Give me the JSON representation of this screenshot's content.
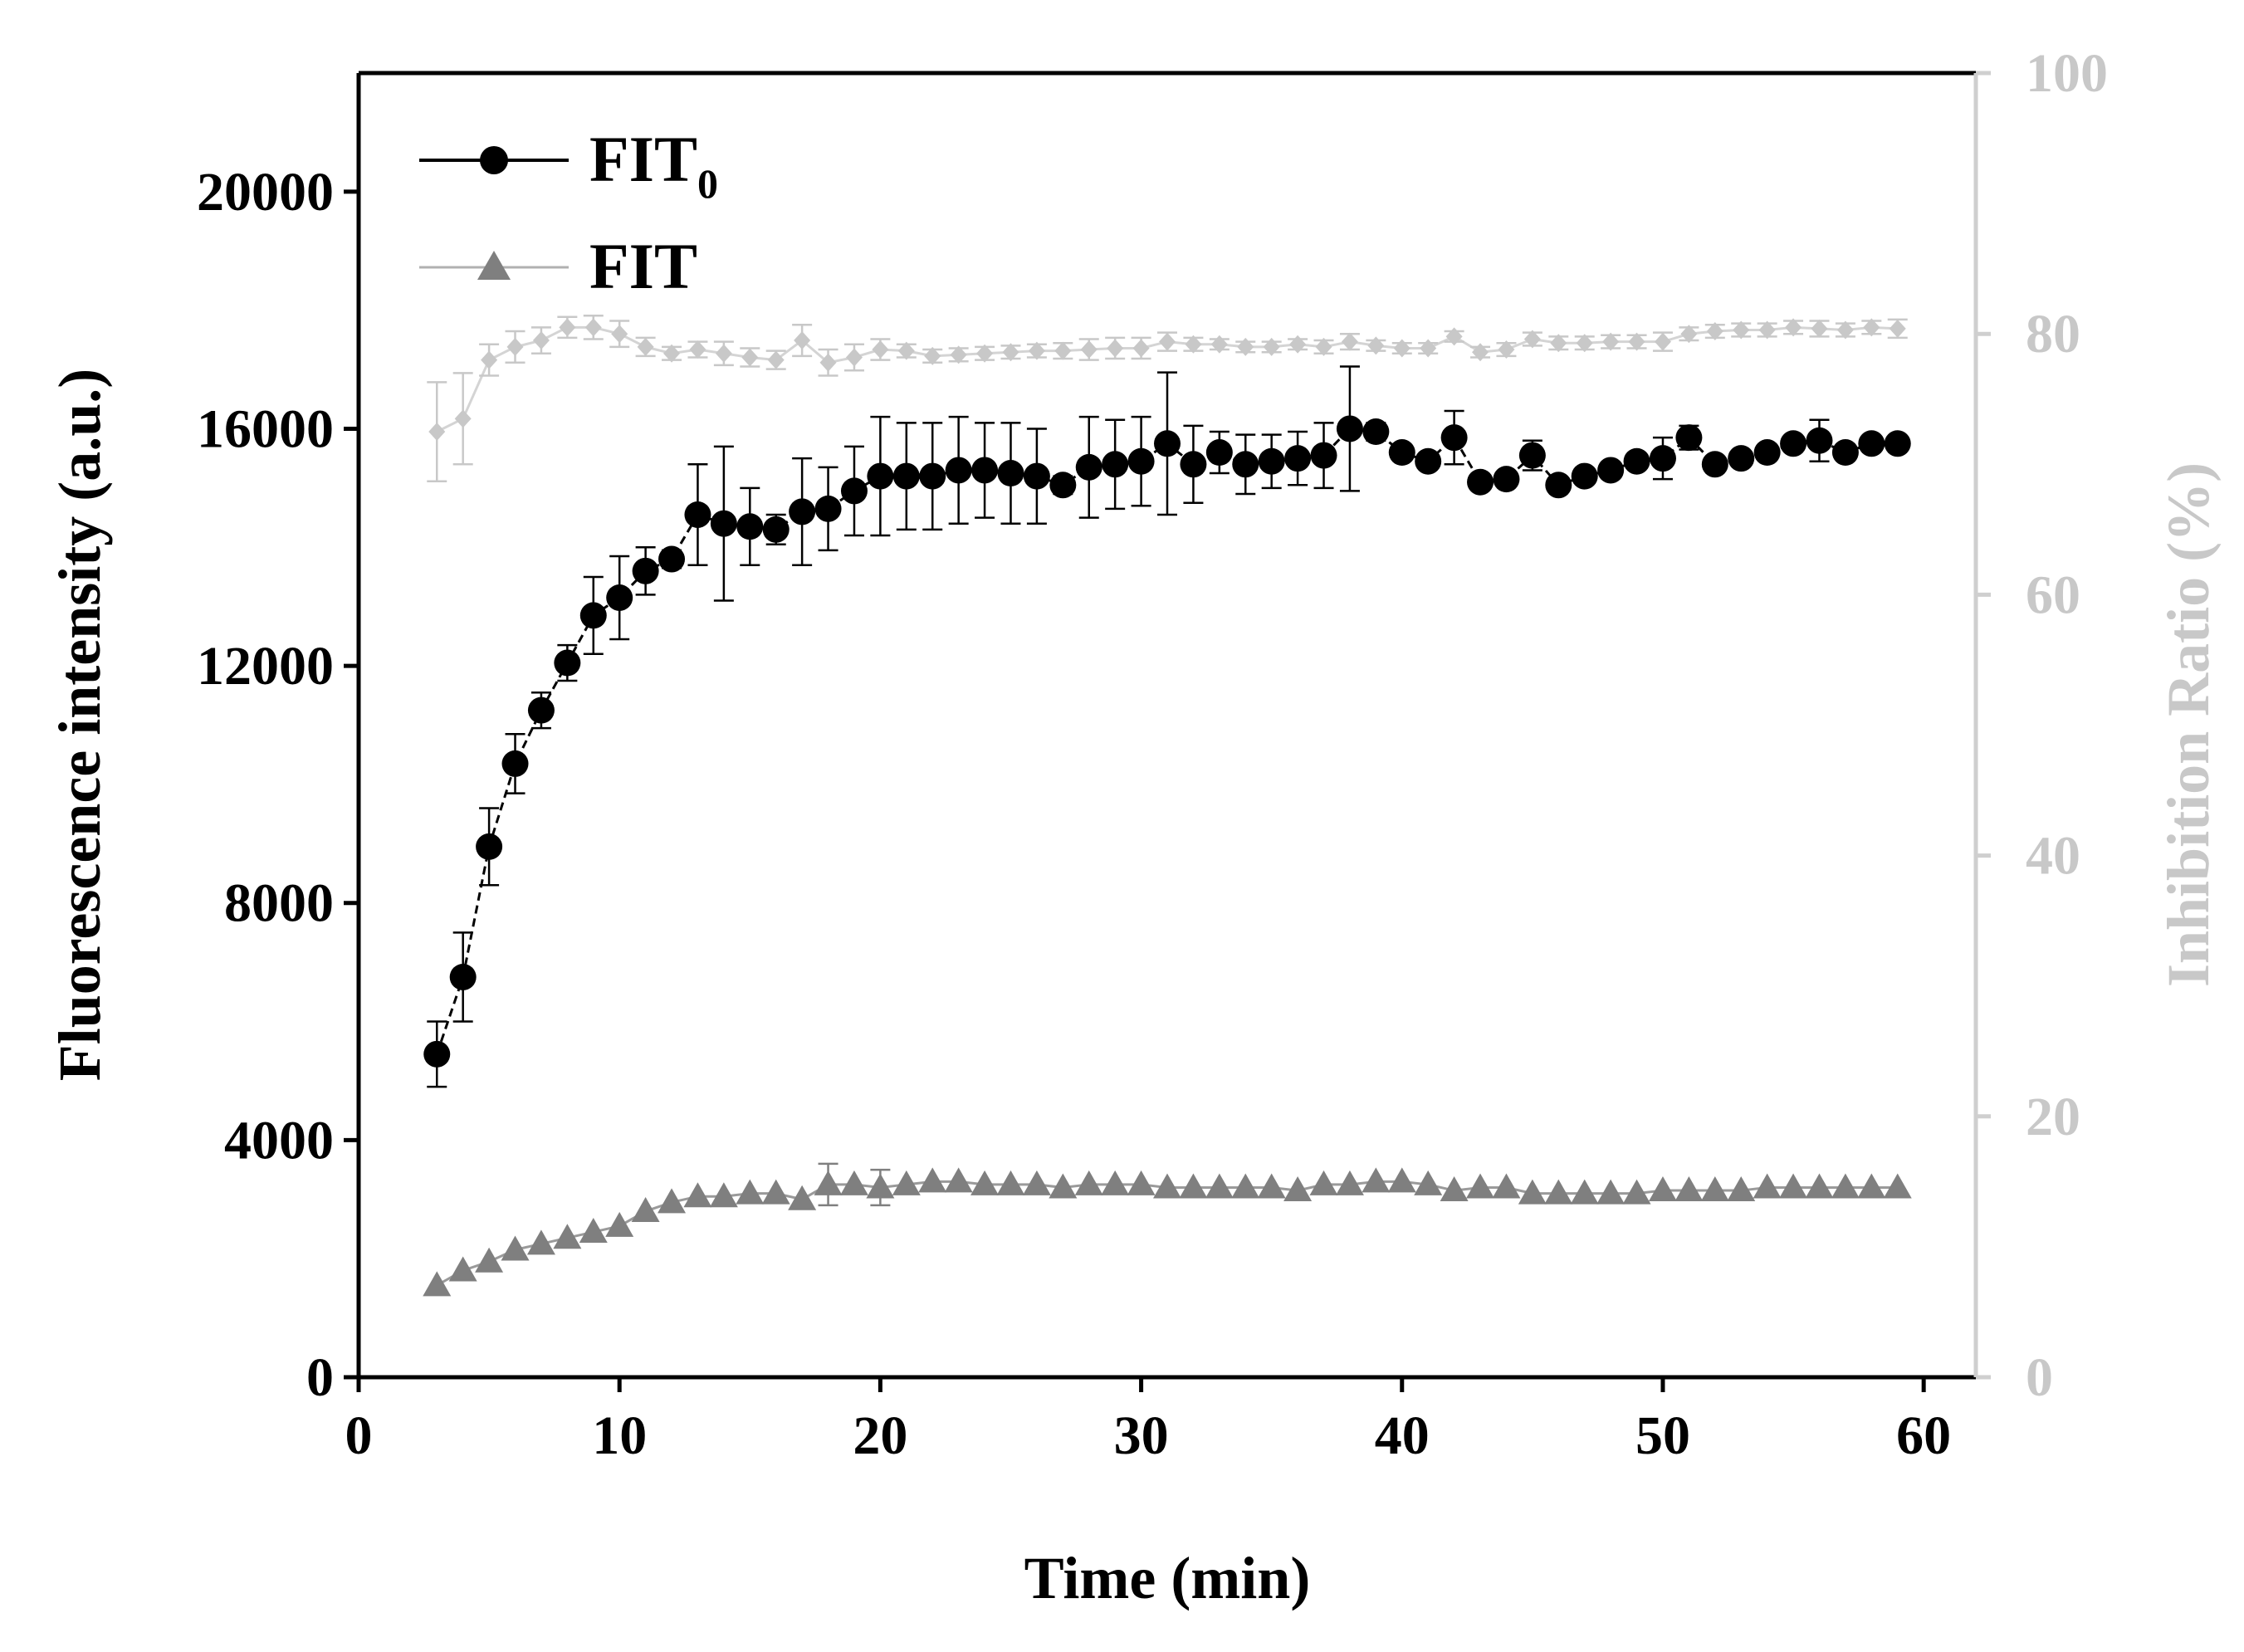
{
  "chart_data": {
    "type": "line",
    "title": "",
    "xlabel": "Time (min)",
    "ylabel": "Fluorescence intensity (a.u.)",
    "y2label": "Inhibition Ratio (%)",
    "xlim": [
      0,
      62
    ],
    "ylim": [
      0,
      22000
    ],
    "y2lim": [
      0,
      100
    ],
    "xticks": [
      "0",
      "10",
      "20",
      "30",
      "40",
      "50",
      "60"
    ],
    "yticks": [
      "0",
      "4000",
      "8000",
      "12000",
      "16000",
      "20000"
    ],
    "y2ticks": [
      "0",
      "20",
      "40",
      "60",
      "80",
      "100"
    ],
    "grid": false,
    "legend_position": "top-left",
    "x": [
      3,
      4,
      5,
      6,
      7,
      8,
      9,
      10,
      11,
      12,
      13,
      14,
      15,
      16,
      17,
      18,
      19,
      20,
      21,
      22,
      23,
      24,
      25,
      26,
      27,
      28,
      29,
      30,
      31,
      32,
      33,
      34,
      35,
      36,
      37,
      38,
      39,
      40,
      41,
      42,
      43,
      44,
      45,
      46,
      47,
      48,
      49,
      50,
      51,
      52,
      53,
      54,
      55,
      56,
      57,
      58,
      59
    ],
    "series": [
      {
        "name": "FIT",
        "name_sub": "0",
        "axis": "left",
        "marker": "circle",
        "color": "#000000",
        "values": [
          5450,
          6750,
          8950,
          10350,
          11250,
          12050,
          12850,
          13150,
          13600,
          13800,
          14550,
          14400,
          14350,
          14300,
          14600,
          14650,
          14950,
          15200,
          15200,
          15200,
          15300,
          15300,
          15250,
          15200,
          15050,
          15350,
          15400,
          15450,
          15750,
          15400,
          15600,
          15400,
          15450,
          15500,
          15550,
          16000,
          15950,
          15600,
          15450,
          15850,
          15100,
          15150,
          15550,
          15050,
          15200,
          15300,
          15450,
          15500,
          15850,
          15400,
          15500,
          15600,
          15750,
          15800,
          15600,
          15750,
          15750
        ],
        "errors": [
          550,
          750,
          650,
          500,
          300,
          300,
          650,
          700,
          400,
          150,
          850,
          1300,
          650,
          250,
          900,
          700,
          750,
          1000,
          900,
          900,
          900,
          800,
          850,
          800,
          150,
          850,
          750,
          750,
          1200,
          650,
          350,
          500,
          450,
          450,
          550,
          1050,
          150,
          0,
          0,
          450,
          0,
          0,
          250,
          0,
          0,
          0,
          0,
          350,
          200,
          0,
          0,
          0,
          0,
          350,
          0,
          0,
          0
        ]
      },
      {
        "name": "FIT",
        "axis": "left",
        "marker": "triangle",
        "color": "#7f7f7f",
        "values": [
          1550,
          1800,
          1950,
          2150,
          2250,
          2350,
          2450,
          2550,
          2800,
          2950,
          3050,
          3050,
          3100,
          3100,
          3000,
          3250,
          3250,
          3200,
          3250,
          3300,
          3300,
          3250,
          3250,
          3250,
          3200,
          3250,
          3250,
          3250,
          3200,
          3200,
          3200,
          3200,
          3200,
          3150,
          3250,
          3250,
          3300,
          3300,
          3250,
          3150,
          3200,
          3200,
          3100,
          3100,
          3100,
          3100,
          3100,
          3150,
          3150,
          3150,
          3150,
          3200,
          3200,
          3200,
          3200,
          3200,
          3200
        ],
        "errors": [
          0,
          0,
          0,
          0,
          0,
          0,
          0,
          0,
          0,
          0,
          0,
          0,
          0,
          0,
          0,
          350,
          0,
          300,
          0,
          0,
          0,
          0,
          0,
          0,
          0,
          0,
          0,
          0,
          0,
          0,
          0,
          0,
          0,
          0,
          0,
          0,
          0,
          0,
          0,
          0,
          0,
          0,
          0,
          0,
          0,
          0,
          0,
          0,
          0,
          0,
          0,
          0,
          0,
          0,
          0,
          0,
          0
        ]
      },
      {
        "name": "Inhibition Ratio",
        "axis": "right",
        "marker": "diamond",
        "color": "#c8c8c8",
        "values": [
          72.5,
          73.5,
          78,
          79,
          79.5,
          80.5,
          80.5,
          80,
          79,
          78.5,
          78.8,
          78.5,
          78.2,
          78,
          79.5,
          77.8,
          78.2,
          78.8,
          78.7,
          78.3,
          78.4,
          78.5,
          78.6,
          78.7,
          78.7,
          78.8,
          78.9,
          78.9,
          79.4,
          79.2,
          79.2,
          79,
          79,
          79.2,
          79,
          79.4,
          79.1,
          78.9,
          78.9,
          79.8,
          78.6,
          78.8,
          79.6,
          79.3,
          79.3,
          79.4,
          79.4,
          79.4,
          80,
          80.2,
          80.3,
          80.3,
          80.5,
          80.4,
          80.3,
          80.5,
          80.4
        ],
        "errors": [
          3.8,
          3.5,
          1.2,
          1.2,
          1,
          0.8,
          0.9,
          1,
          0.7,
          0.5,
          0.6,
          0.9,
          0.7,
          0.7,
          1.2,
          1,
          1,
          0.8,
          0.5,
          0.5,
          0.5,
          0.5,
          0.5,
          0.5,
          0.6,
          0.8,
          0.8,
          0.8,
          0.7,
          0.5,
          0.4,
          0.4,
          0.4,
          0.4,
          0.5,
          0.6,
          0.4,
          0.4,
          0.4,
          0.4,
          0.4,
          0.5,
          0.5,
          0.5,
          0.5,
          0.5,
          0.5,
          0.7,
          0.5,
          0.5,
          0.5,
          0.5,
          0.5,
          0.6,
          0.5,
          0.5,
          0.7
        ]
      }
    ]
  }
}
